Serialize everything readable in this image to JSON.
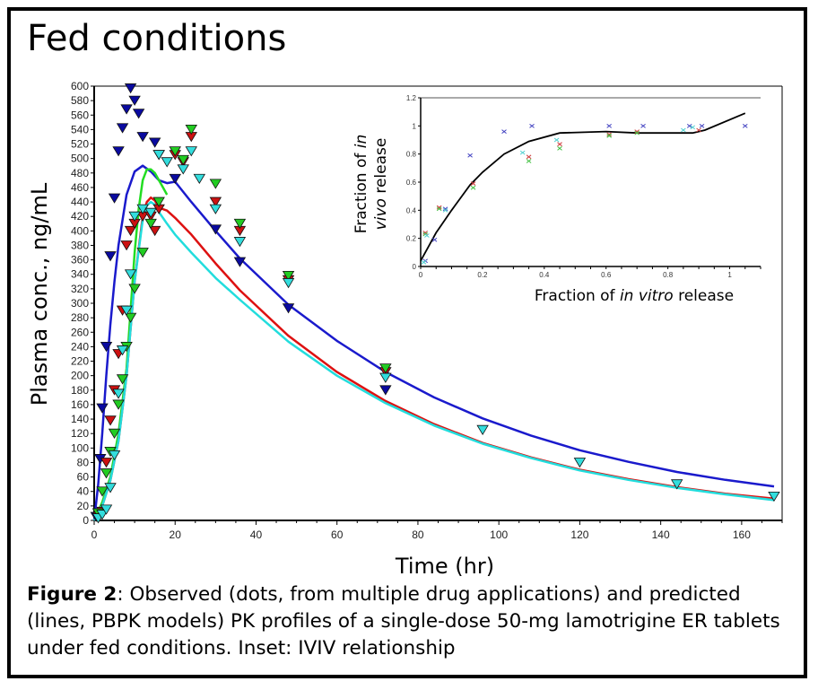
{
  "page": {
    "title": "Fed conditions",
    "caption_bold": "Figure 2",
    "caption_text": ": Observed (dots, from multiple drug applications) and predicted (lines, PBPK models) PK profiles of a single-dose 50-mg lamotrigine ER tablets under fed conditions. Inset: IVIV relationship"
  },
  "chart_data": [
    {
      "id": "main",
      "type": "line",
      "title": "Fed conditions",
      "xlabel": "Time (hr)",
      "ylabel": "Plasma conc., ng/mL",
      "xlim": [
        0,
        170
      ],
      "ylim": [
        0,
        600
      ],
      "xticks": [
        0,
        20,
        40,
        60,
        80,
        100,
        120,
        140,
        160
      ],
      "yticks": [
        0,
        20,
        40,
        60,
        80,
        100,
        120,
        140,
        160,
        180,
        200,
        220,
        240,
        260,
        280,
        300,
        320,
        340,
        360,
        380,
        400,
        420,
        440,
        460,
        480,
        500,
        520,
        540,
        560,
        580,
        600
      ],
      "grid": false,
      "legend": "none",
      "series": [
        {
          "name": "Predicted (blue)",
          "kind": "line",
          "color": "#1a1acc",
          "x": [
            0,
            1,
            2,
            3,
            4,
            5,
            6,
            8,
            10,
            12,
            14,
            16,
            18,
            20,
            24,
            30,
            36,
            48,
            60,
            72,
            84,
            96,
            108,
            120,
            132,
            144,
            156,
            168
          ],
          "y": [
            0,
            50,
            120,
            200,
            270,
            330,
            380,
            450,
            482,
            490,
            482,
            470,
            466,
            468,
            440,
            400,
            362,
            298,
            248,
            205,
            170,
            141,
            117,
            97,
            81,
            67,
            56,
            47
          ]
        },
        {
          "name": "Predicted (green)",
          "kind": "line",
          "color": "#22dd22",
          "x": [
            0,
            2,
            4,
            6,
            8,
            9,
            10,
            11,
            12,
            13,
            14,
            15,
            16,
            17,
            18
          ],
          "y": [
            0,
            25,
            60,
            120,
            210,
            290,
            370,
            430,
            470,
            485,
            485,
            480,
            470,
            460,
            450
          ]
        },
        {
          "name": "Predicted (red)",
          "kind": "line",
          "color": "#dd1111",
          "x": [
            0,
            2,
            4,
            6,
            8,
            10,
            12,
            13,
            14,
            15,
            16,
            18,
            20,
            24,
            30,
            36,
            48,
            60,
            72,
            84,
            96,
            108,
            120,
            132,
            144,
            156,
            168
          ],
          "y": [
            0,
            20,
            55,
            110,
            200,
            330,
            420,
            440,
            446,
            442,
            432,
            428,
            418,
            395,
            355,
            318,
            255,
            205,
            165,
            133,
            107,
            87,
            70,
            57,
            46,
            37,
            30
          ]
        },
        {
          "name": "Predicted (cyan)",
          "kind": "line",
          "color": "#22dddd",
          "x": [
            0,
            2,
            4,
            6,
            8,
            10,
            12,
            13,
            14,
            15,
            16,
            18,
            20,
            24,
            30,
            36,
            48,
            60,
            72,
            84,
            96,
            108,
            120,
            132,
            144,
            156,
            168
          ],
          "y": [
            0,
            20,
            55,
            110,
            200,
            330,
            415,
            435,
            440,
            436,
            426,
            410,
            395,
            370,
            335,
            305,
            247,
            200,
            162,
            131,
            106,
            86,
            69,
            56,
            45,
            36,
            28
          ]
        },
        {
          "name": "Observed (blue)",
          "kind": "scatter",
          "color": "#0a0aa0",
          "x": [
            0.5,
            1,
            1.5,
            2,
            3,
            4,
            5,
            6,
            7,
            8,
            9,
            10,
            11,
            12,
            15,
            16,
            20,
            30,
            36,
            48,
            72
          ],
          "y": [
            5,
            10,
            85,
            155,
            240,
            365,
            445,
            510,
            542,
            568,
            597,
            580,
            562,
            530,
            522,
            505,
            472,
            402,
            357,
            293,
            180
          ]
        },
        {
          "name": "Observed (red)",
          "kind": "scatter",
          "color": "#cc1111",
          "x": [
            1,
            2,
            3,
            4,
            5,
            6,
            7,
            8,
            9,
            10,
            12,
            14,
            15,
            16,
            20,
            22,
            24,
            30,
            36,
            48,
            72
          ],
          "y": [
            5,
            12,
            80,
            138,
            180,
            230,
            290,
            380,
            400,
            410,
            420,
            420,
            400,
            430,
            505,
            495,
            530,
            440,
            400,
            332,
            205
          ]
        },
        {
          "name": "Observed (green)",
          "kind": "scatter",
          "color": "#22cc22",
          "x": [
            1,
            2,
            3,
            4,
            5,
            6,
            7,
            8,
            9,
            10,
            12,
            14,
            16,
            20,
            22,
            24,
            30,
            36,
            48,
            72
          ],
          "y": [
            10,
            40,
            65,
            95,
            120,
            160,
            195,
            240,
            280,
            320,
            370,
            410,
            440,
            510,
            498,
            540,
            465,
            410,
            338,
            210
          ]
        },
        {
          "name": "Observed (cyan)",
          "kind": "scatter",
          "color": "#33dddd",
          "x": [
            1,
            2,
            3,
            4,
            5,
            6,
            7,
            8,
            9,
            10,
            12,
            14,
            16,
            18,
            22,
            24,
            26,
            30,
            36,
            48,
            72,
            96,
            120,
            144,
            168
          ],
          "y": [
            3,
            8,
            15,
            45,
            90,
            175,
            235,
            290,
            340,
            420,
            430,
            425,
            505,
            495,
            485,
            510,
            472,
            430,
            385,
            328,
            197,
            125,
            80,
            50,
            33
          ]
        }
      ]
    },
    {
      "id": "inset",
      "type": "scatter",
      "title": "IVIV relationship",
      "xlabel_parts": [
        "Fraction of ",
        "in vitro",
        " release"
      ],
      "ylabel_parts": [
        "Fraction of ",
        "in",
        "vivo",
        " release"
      ],
      "xlim": [
        0,
        1.1
      ],
      "ylim": [
        0,
        1.2
      ],
      "xticks": [
        0,
        0.2,
        0.4,
        0.6,
        0.8,
        1
      ],
      "yticks": [
        0,
        0.2,
        0.4,
        0.6,
        0.8,
        1,
        1.2
      ],
      "grid": false,
      "legend": "none",
      "series": [
        {
          "name": "IVIVC fit",
          "kind": "line",
          "color": "#000000",
          "x": [
            0,
            0.02,
            0.05,
            0.1,
            0.16,
            0.2,
            0.27,
            0.35,
            0.45,
            0.6,
            0.7,
            0.88,
            0.92,
            1.05
          ],
          "y": [
            0.04,
            0.12,
            0.24,
            0.4,
            0.58,
            0.67,
            0.8,
            0.89,
            0.95,
            0.96,
            0.95,
            0.95,
            0.97,
            1.09
          ]
        },
        {
          "name": "Observed (blue)",
          "kind": "scatter",
          "color": "#4040c0",
          "x": [
            0.015,
            0.045,
            0.08,
            0.16,
            0.27,
            0.36,
            0.61,
            0.72,
            0.87,
            0.91,
            1.05
          ],
          "y": [
            0.04,
            0.19,
            0.41,
            0.79,
            0.96,
            1.0,
            1.0,
            1.0,
            1.0,
            1.0,
            1.0
          ]
        },
        {
          "name": "Observed (red)",
          "kind": "scatter",
          "color": "#d04040",
          "x": [
            0.015,
            0.06,
            0.17,
            0.35,
            0.45,
            0.61,
            0.7,
            0.9
          ],
          "y": [
            0.24,
            0.42,
            0.59,
            0.78,
            0.87,
            0.94,
            0.96,
            0.97
          ]
        },
        {
          "name": "Observed (green)",
          "kind": "scatter",
          "color": "#40c040",
          "x": [
            0.015,
            0.06,
            0.17,
            0.35,
            0.45,
            0.61,
            0.7
          ],
          "y": [
            0.23,
            0.41,
            0.56,
            0.75,
            0.84,
            0.93,
            0.95
          ]
        },
        {
          "name": "Observed (cyan)",
          "kind": "scatter",
          "color": "#50d0d0",
          "x": [
            0.01,
            0.02,
            0.08,
            0.33,
            0.44,
            0.85,
            0.88
          ],
          "y": [
            0.03,
            0.22,
            0.4,
            0.81,
            0.9,
            0.97,
            0.99
          ]
        }
      ]
    }
  ]
}
